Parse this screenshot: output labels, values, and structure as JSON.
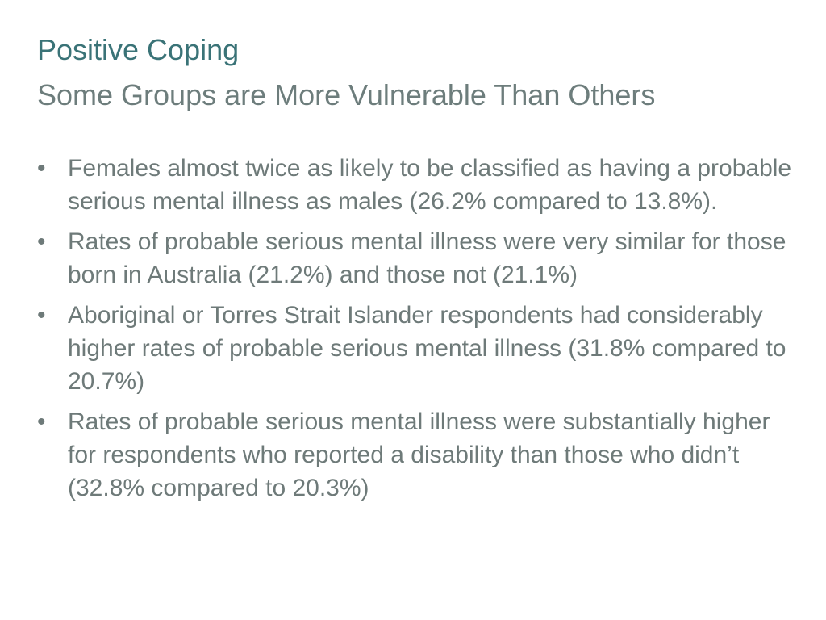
{
  "slide": {
    "title": "Positive Coping",
    "subtitle": "Some Groups are More Vulnerable Than Others",
    "bullet_marker": "•",
    "bullets": [
      "Females almost twice as likely to be classified as having a probable serious mental illness as males (26.2% compared to 13.8%).",
      "Rates of probable serious mental illness were very similar for those born in Australia (21.2%) and those not (21.1%)",
      "Aboriginal or Torres Strait Islander respondents had considerably higher rates of probable serious mental illness (31.8% compared to 20.7%)",
      "Rates of probable serious mental illness were substantially higher for respondents who reported a disability than those who didn’t (32.8% compared to 20.3%)"
    ]
  }
}
